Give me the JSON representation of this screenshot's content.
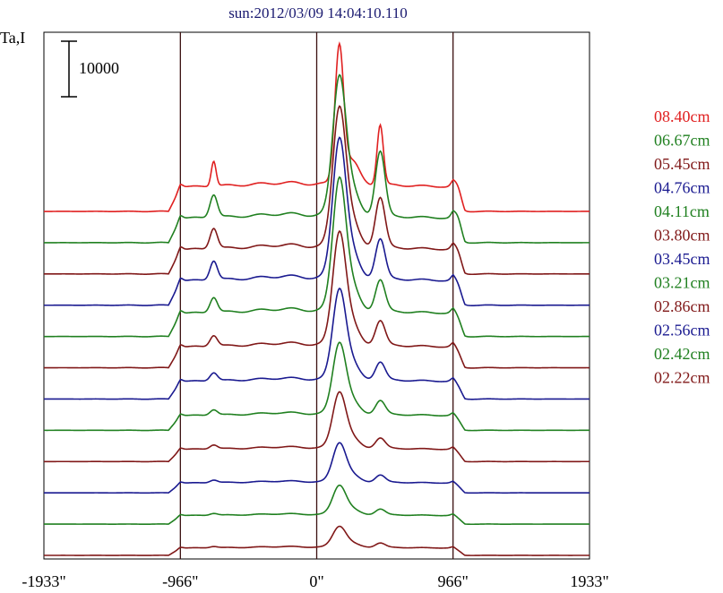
{
  "chart_data": {
    "type": "line",
    "title": "sun:2012/03/09 14:04:10.110",
    "ylabel": "Ta,I",
    "scale_bar_label": "10000",
    "scale_bar_value": 10000,
    "x_ticks": [
      {
        "value": -1933,
        "label": "-1933\""
      },
      {
        "value": -966,
        "label": "-966\""
      },
      {
        "value": 0,
        "label": "0\""
      },
      {
        "value": 966,
        "label": "966\""
      },
      {
        "value": 1933,
        "label": "1933\""
      }
    ],
    "vertical_lines": [
      -966,
      0,
      966
    ],
    "xlim": [
      -1933,
      1933
    ],
    "grid": false,
    "legend_position": "right",
    "series": [
      {
        "name": "08.40cm",
        "color": "#e02020",
        "amp": 1.0,
        "peakL": 0.55,
        "peakC": 1.0,
        "peakR": 0.72,
        "dip": 0.35,
        "bump": 0.08,
        "narrow": 0.6
      },
      {
        "name": "06.67cm",
        "color": "#208020",
        "amp": 1.0,
        "peakL": 0.5,
        "peakC": 1.0,
        "peakR": 0.78,
        "dip": 0.45,
        "bump": 0.09,
        "narrow": 1.0
      },
      {
        "name": "05.45cm",
        "color": "#801818",
        "amp": 1.0,
        "peakL": 0.45,
        "peakC": 1.0,
        "peakR": 0.6,
        "dip": 0.45,
        "bump": 0.1,
        "narrow": 1.0
      },
      {
        "name": "04.76cm",
        "color": "#1a1a90",
        "amp": 1.0,
        "peakL": 0.42,
        "peakC": 1.0,
        "peakR": 0.48,
        "dip": 0.5,
        "bump": 0.1,
        "narrow": 1.0
      },
      {
        "name": "04.11cm",
        "color": "#208020",
        "amp": 0.95,
        "peakL": 0.35,
        "peakC": 1.0,
        "peakR": 0.4,
        "dip": 0.5,
        "bump": 0.1,
        "narrow": 1.0
      },
      {
        "name": "03.80cm",
        "color": "#801818",
        "amp": 0.85,
        "peakL": 0.28,
        "peakC": 0.95,
        "peakR": 0.35,
        "dip": 0.55,
        "bump": 0.1,
        "narrow": 1.0
      },
      {
        "name": "03.45cm",
        "color": "#1a1a90",
        "amp": 0.72,
        "peakL": 0.25,
        "peakC": 0.9,
        "peakR": 0.3,
        "dip": 0.6,
        "bump": 0.1,
        "narrow": 1.0
      },
      {
        "name": "03.21cm",
        "color": "#208020",
        "amp": 0.6,
        "peakL": 0.2,
        "peakC": 0.85,
        "peakR": 0.28,
        "dip": 0.65,
        "bump": 0.12,
        "narrow": 1.0
      },
      {
        "name": "02.86cm",
        "color": "#801818",
        "amp": 0.5,
        "peakL": 0.18,
        "peakC": 0.8,
        "peakR": 0.25,
        "dip": 0.7,
        "bump": 0.12,
        "narrow": 1.0
      },
      {
        "name": "02.56cm",
        "color": "#1a1a90",
        "amp": 0.4,
        "peakL": 0.15,
        "peakC": 0.7,
        "peakR": 0.22,
        "dip": 0.75,
        "bump": 0.12,
        "narrow": 1.0
      },
      {
        "name": "02.42cm",
        "color": "#208020",
        "amp": 0.35,
        "peakL": 0.12,
        "peakC": 0.6,
        "peakR": 0.2,
        "dip": 0.8,
        "bump": 0.12,
        "narrow": 1.0
      },
      {
        "name": "02.22cm",
        "color": "#801818",
        "amp": 0.3,
        "peakL": 0.1,
        "peakC": 0.5,
        "peakR": 0.18,
        "dip": 0.85,
        "bump": 0.12,
        "narrow": 1.0
      }
    ]
  }
}
